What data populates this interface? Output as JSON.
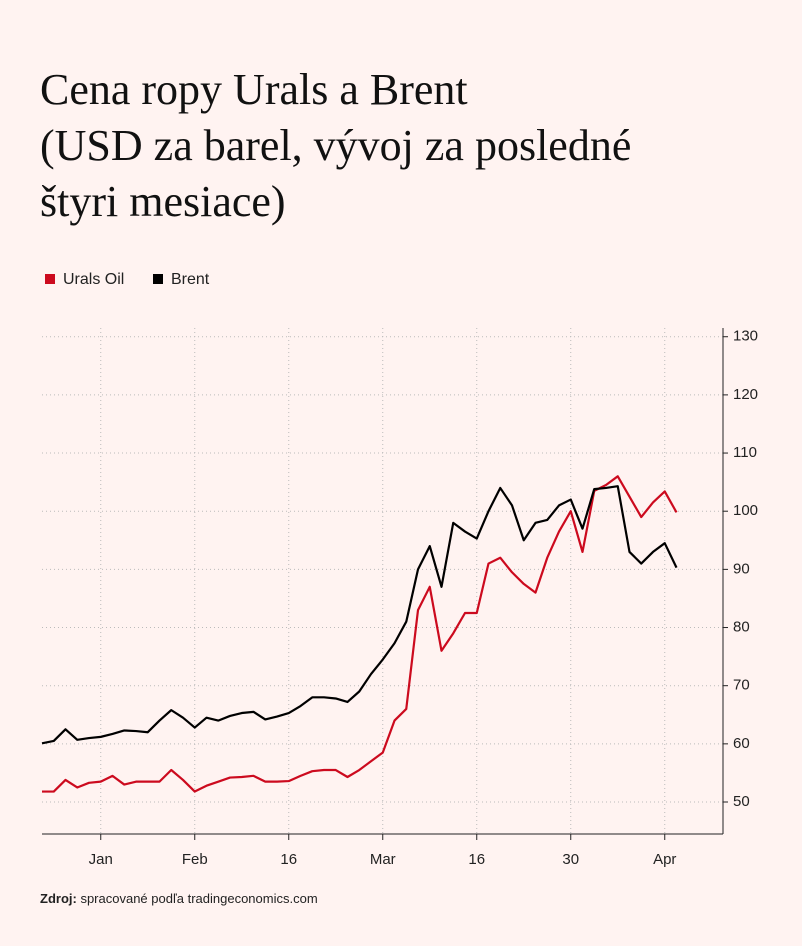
{
  "chart_data": {
    "type": "line",
    "title": "Cena ropy Urals a Brent",
    "subtitle": "(USD za barel, vývoj za posledné štyri mesiace)",
    "categories": [
      null,
      null,
      null,
      null,
      null,
      "Jan",
      null,
      null,
      null,
      null,
      null,
      null,
      null,
      "Feb",
      null,
      null,
      null,
      null,
      null,
      null,
      null,
      "16",
      null,
      null,
      null,
      null,
      null,
      null,
      null,
      "Mar",
      null,
      null,
      null,
      null,
      null,
      null,
      null,
      "16",
      null,
      null,
      null,
      null,
      null,
      null,
      null,
      "30",
      null,
      null,
      null,
      null,
      null,
      null,
      null,
      "Apr",
      null
    ],
    "series": [
      {
        "name": "Urals Oil",
        "color": "#cc0a1e",
        "values": [
          51.8,
          51.8,
          53.8,
          52.5,
          53.3,
          53.5,
          54.5,
          53,
          53.5,
          53.5,
          53.5,
          55.5,
          53.8,
          51.8,
          52.8,
          53.5,
          54.2,
          54.3,
          54.5,
          53.5,
          53.5,
          53.6,
          54.5,
          55.3,
          55.5,
          55.5,
          54.3,
          55.5,
          57,
          58.5,
          64,
          66,
          83,
          87,
          76,
          79,
          82.5,
          82.5,
          91,
          92,
          89.5,
          87.5,
          86,
          92,
          96.5,
          100,
          93,
          103.5,
          104.5,
          106,
          102.5,
          99,
          101.5,
          103.4,
          99.8
        ]
      },
      {
        "name": "Brent",
        "color": "#000000",
        "values": [
          60.1,
          60.5,
          62.5,
          60.7,
          61,
          61.2,
          61.7,
          62.3,
          62.2,
          62,
          64,
          65.8,
          64.5,
          62.8,
          64.5,
          64,
          64.8,
          65.3,
          65.5,
          64.2,
          64.7,
          65.3,
          66.5,
          68,
          68,
          67.8,
          67.2,
          69,
          72,
          74.5,
          77.3,
          81,
          90,
          94,
          87,
          98,
          96.5,
          95.3,
          100,
          104,
          101,
          95,
          98,
          98.5,
          101,
          102,
          97,
          103.8,
          104,
          104.3,
          93,
          91,
          93,
          94.5,
          90.3
        ]
      }
    ],
    "ylim": [
      44.5,
      131.5
    ],
    "yticks": [
      50,
      60,
      70,
      80,
      90,
      100,
      110,
      120,
      130
    ],
    "grid": true,
    "legend": "top-left",
    "source_label": "Zdroj:",
    "source_text": "spracované podľa tradingeconomics.com"
  }
}
